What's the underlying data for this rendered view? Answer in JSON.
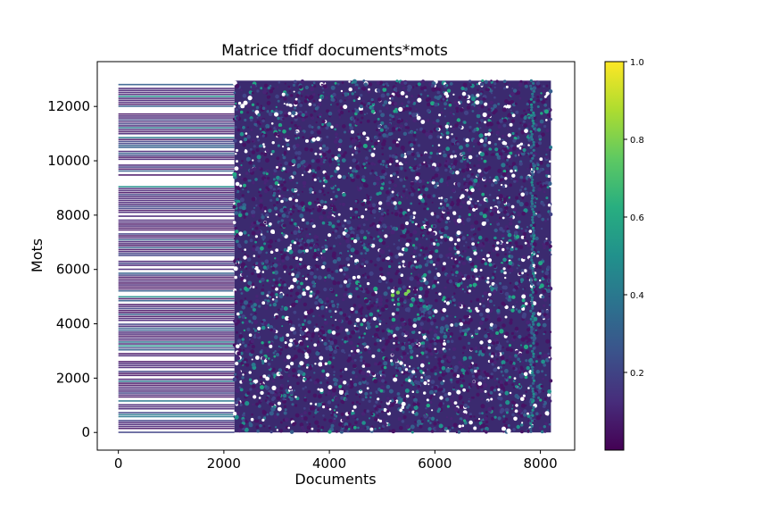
{
  "chart_data": {
    "type": "scatter",
    "title": "Matrice tfidf documents*mots",
    "xlabel": "Documents",
    "ylabel": "Mots",
    "xlim": [
      -400,
      8650
    ],
    "ylim": [
      -650,
      13650
    ],
    "x_ticks": [
      "0",
      "2000",
      "4000",
      "6000",
      "8000"
    ],
    "x_tick_values": [
      0,
      2000,
      4000,
      6000,
      8000
    ],
    "y_ticks": [
      "0",
      "2000",
      "4000",
      "6000",
      "8000",
      "10000",
      "12000"
    ],
    "y_tick_values": [
      0,
      2000,
      4000,
      6000,
      8000,
      10000,
      12000
    ],
    "data_extent": {
      "x": [
        0,
        8200
      ],
      "y": [
        0,
        12950
      ]
    },
    "dense_band_x": [
      0,
      2200
    ],
    "grid": false,
    "colormap": "viridis",
    "colorbar": {
      "range": [
        0.0,
        1.0
      ],
      "ticks": [
        "0.2",
        "0.4",
        "0.6",
        "0.8",
        "1.0"
      ],
      "tick_values": [
        0.2,
        0.4,
        0.6,
        0.8,
        1.0
      ]
    },
    "colors": {
      "viridis_low": "#440154",
      "viridis_mid": "#21918c",
      "viridis_high": "#fde725",
      "background": "#ffffff",
      "axis": "#000000"
    }
  }
}
